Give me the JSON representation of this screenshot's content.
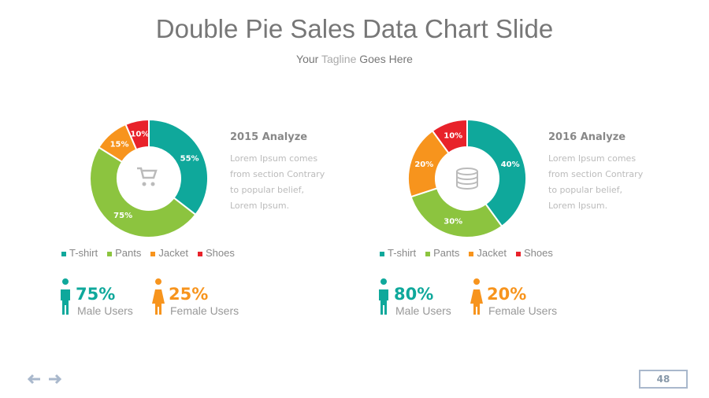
{
  "title": "Double Pie Sales Data Chart Slide",
  "tagline": [
    "Your",
    "Tagline",
    "Goes Here"
  ],
  "chart_data": [
    {
      "type": "pie",
      "donut": true,
      "title": "2015 Analyze",
      "description": "Lorem Ipsum comes from section Contrary to popular belief, Lorem Ipsum.",
      "categories": [
        "T-shirt",
        "Pants",
        "Jacket",
        "Shoes"
      ],
      "values": [
        55,
        75,
        15,
        10
      ],
      "value_labels": [
        "55%",
        "75%",
        "15%",
        "10%"
      ],
      "colors": [
        "#0fa89b",
        "#8cc43f",
        "#f7941d",
        "#e8222a"
      ]
    },
    {
      "type": "pie",
      "donut": true,
      "title": "2016 Analyze",
      "description": "Lorem Ipsum comes from section Contrary to popular belief, Lorem Ipsum.",
      "categories": [
        "T-shirt",
        "Pants",
        "Jacket",
        "Shoes"
      ],
      "values": [
        40,
        30,
        20,
        10
      ],
      "value_labels": [
        "40%",
        "30%",
        "20%",
        "10%"
      ],
      "colors": [
        "#0fa89b",
        "#8cc43f",
        "#f7941d",
        "#e8222a"
      ]
    }
  ],
  "users": [
    [
      {
        "value": "75%",
        "label": "Male Users"
      },
      {
        "value": "25%",
        "label": "Female Users"
      }
    ],
    [
      {
        "value": "80%",
        "label": "Male Users"
      },
      {
        "value": "20%",
        "label": "Female Users"
      }
    ]
  ],
  "page_number": "48"
}
